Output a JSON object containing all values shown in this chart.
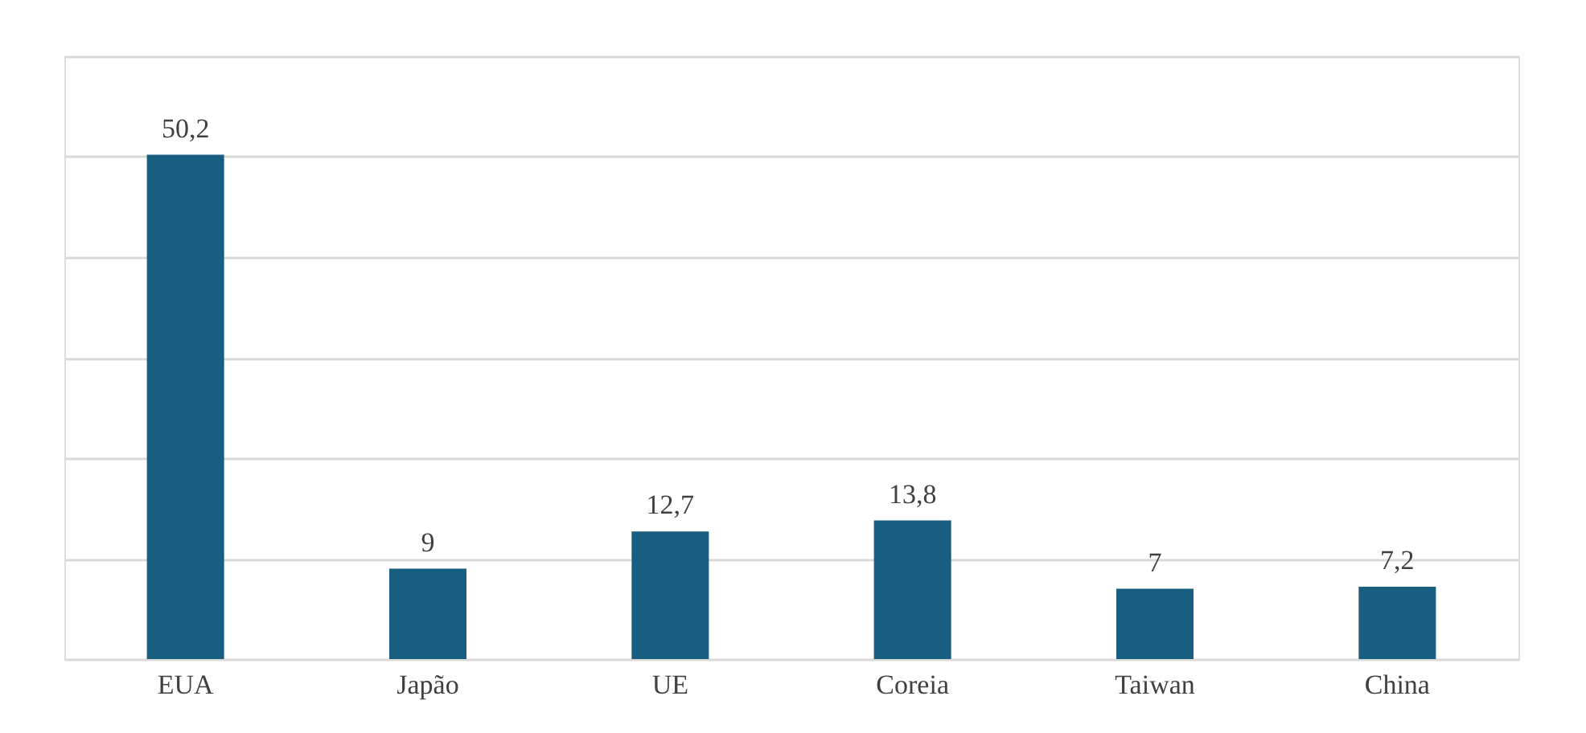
{
  "chart_data": {
    "type": "bar",
    "categories": [
      "EUA",
      "Japão",
      "UE",
      "Coreia",
      "Taiwan",
      "China"
    ],
    "values": [
      50.2,
      9,
      12.7,
      13.8,
      7,
      7.2
    ],
    "value_labels": [
      "50,2",
      "9",
      "12,7",
      "13,8",
      "7",
      "7,2"
    ],
    "color": "#175e80",
    "ylim": [
      0,
      60
    ],
    "yticks": [
      {
        "value": 0,
        "label": null
      },
      {
        "value": 10,
        "label": null
      },
      {
        "value": 20,
        "label": null
      },
      {
        "value": 30,
        "label": null
      },
      {
        "value": 40,
        "label": null
      },
      {
        "value": 50,
        "label": null
      },
      {
        "value": 60,
        "label": null
      }
    ],
    "grid": "y",
    "tick_labels": "x"
  }
}
